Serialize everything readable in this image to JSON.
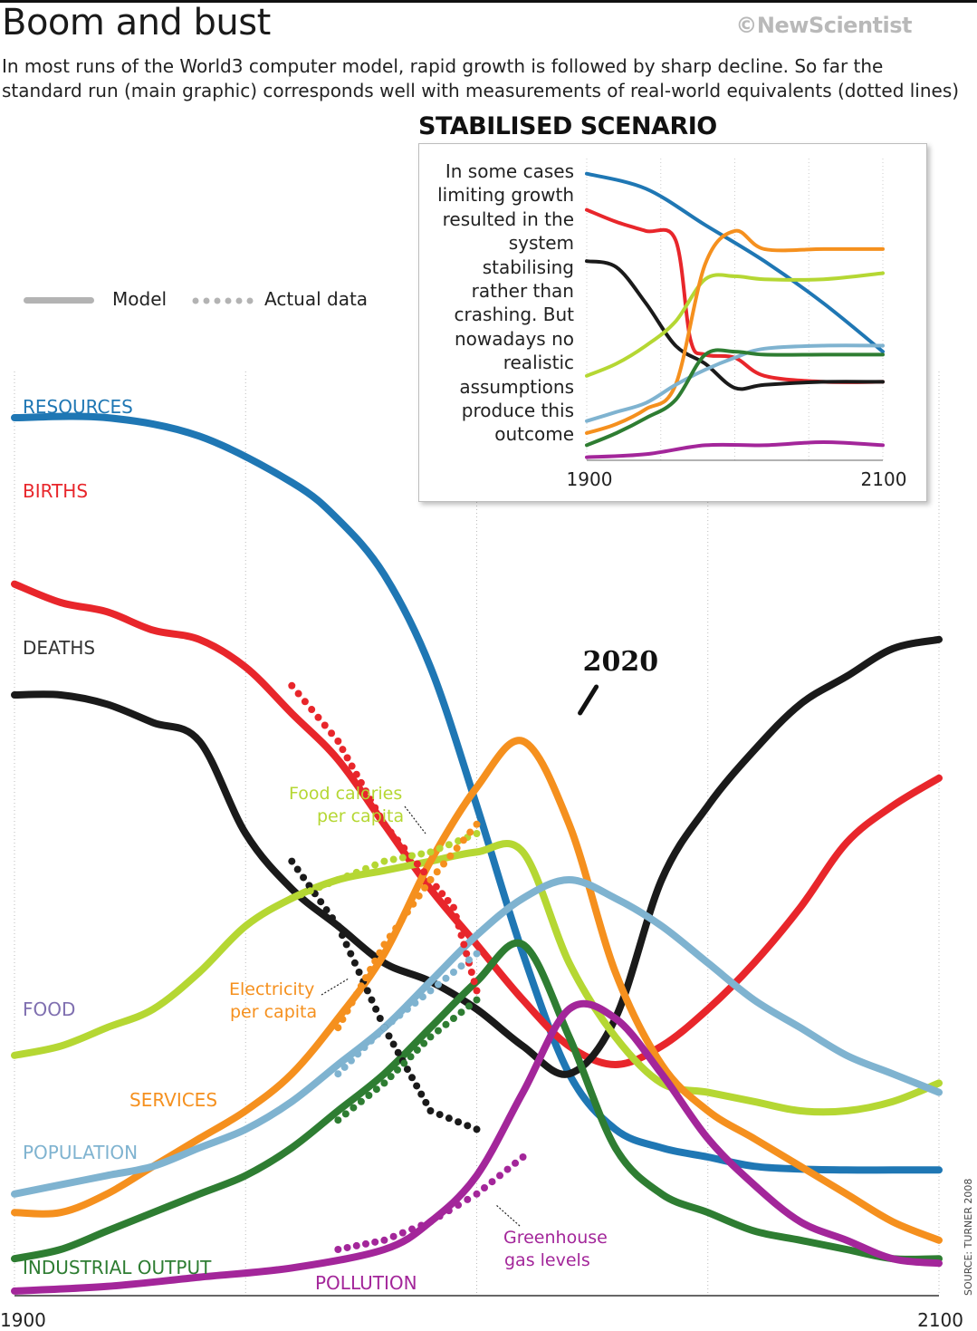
{
  "header": {
    "title": "Boom and bust",
    "brand": "©NewScientist",
    "subtitle": "In most runs of the World3 computer model, rapid growth is followed by sharp decline. So far the standard run (main graphic) corresponds well with measurements of real-world equivalents (dotted lines)"
  },
  "legend": {
    "model_label": "Model",
    "actual_label": "Actual data",
    "model_color": "#b3b3b3",
    "actual_color": "#b3b3b3"
  },
  "source_note": "SOURCE: TURNER 2008",
  "inset": {
    "title": "STABILISED SCENARIO",
    "text": "In some cases limiting growth resulted in the system stabilising rather than crashing. But nowadays no realistic assumptions produce this outcome"
  },
  "chart_data": [
    {
      "type": "line",
      "xlim": [
        1900,
        2100
      ],
      "x_tick_labels": [
        "1900",
        "2100"
      ],
      "highlight": {
        "x": 2020,
        "label": "2020"
      },
      "series": [
        {
          "name": "RESOURCES",
          "color": "#1f77b4",
          "x": [
            1900,
            1920,
            1940,
            1960,
            1970,
            1980,
            1990,
            2000,
            2010,
            2020,
            2030,
            2040,
            2050,
            2060,
            2070,
            2080,
            2090,
            2100
          ],
          "y": [
            95,
            95,
            93,
            88,
            84,
            78,
            68,
            53,
            37,
            24,
            18,
            16,
            15,
            14,
            13.7,
            13.6,
            13.6,
            13.6
          ]
        },
        {
          "name": "BIRTHS",
          "color": "#e8262b",
          "x": [
            1900,
            1910,
            1920,
            1930,
            1940,
            1950,
            1960,
            1970,
            1980,
            1990,
            2000,
            2010,
            2020,
            2030,
            2040,
            2050,
            2060,
            2070,
            2080,
            2090,
            2100
          ],
          "y": [
            77,
            75,
            74,
            72,
            71,
            68,
            63,
            58,
            51,
            44,
            38,
            32,
            27,
            25,
            27,
            31,
            36,
            42,
            49,
            53,
            56
          ]
        },
        {
          "name": "DEATHS",
          "color": "#1a1a1a",
          "x": [
            1900,
            1910,
            1920,
            1930,
            1940,
            1950,
            1960,
            1970,
            1980,
            1990,
            2000,
            2010,
            2020,
            2030,
            2040,
            2050,
            2060,
            2070,
            2080,
            2090,
            2100
          ],
          "y": [
            65,
            65,
            64,
            62,
            60,
            50,
            44,
            40,
            36,
            34,
            31,
            27,
            24,
            30,
            45,
            53,
            59,
            64,
            67,
            70,
            71
          ]
        },
        {
          "name": "FOOD",
          "color": "#b5d733",
          "x": [
            1900,
            1910,
            1920,
            1930,
            1940,
            1950,
            1960,
            1970,
            1980,
            1990,
            2000,
            2010,
            2020,
            2030,
            2040,
            2050,
            2060,
            2070,
            2080,
            2090,
            2100
          ],
          "y": [
            26,
            27,
            29,
            31,
            35,
            40,
            43,
            45,
            46,
            47,
            48,
            48,
            36,
            28,
            23,
            22,
            21,
            20,
            20,
            21,
            23
          ]
        },
        {
          "name": "SERVICES",
          "color": "#f5901e",
          "x": [
            1900,
            1910,
            1920,
            1930,
            1940,
            1950,
            1960,
            1970,
            1980,
            1990,
            2000,
            2010,
            2020,
            2030,
            2040,
            2050,
            2060,
            2070,
            2080,
            2090,
            2100
          ],
          "y": [
            9,
            9,
            11,
            14,
            17,
            20,
            24,
            30,
            37,
            47,
            55,
            60,
            51,
            35,
            25,
            20,
            17,
            14,
            11,
            8,
            6
          ]
        },
        {
          "name": "POPULATION",
          "color": "#7fb3d0",
          "x": [
            1900,
            1910,
            1920,
            1930,
            1940,
            1950,
            1960,
            1970,
            1980,
            1990,
            2000,
            2010,
            2020,
            2030,
            2040,
            2050,
            2060,
            2070,
            2080,
            2090,
            2100
          ],
          "y": [
            11,
            12,
            13,
            14,
            16,
            18,
            21,
            25,
            29,
            34,
            39,
            43,
            45,
            43,
            40,
            36,
            32,
            29,
            26,
            24,
            22
          ]
        },
        {
          "name": "INDUSTRIAL OUTPUT",
          "color": "#2e7d32",
          "x": [
            1900,
            1910,
            1920,
            1930,
            1940,
            1950,
            1960,
            1970,
            1980,
            1990,
            2000,
            2010,
            2020,
            2030,
            2040,
            2050,
            2060,
            2070,
            2080,
            2090,
            2100
          ],
          "y": [
            4,
            5,
            7,
            9,
            11,
            13,
            16,
            20,
            24,
            29,
            34,
            38,
            28,
            16,
            11,
            9,
            7,
            6,
            5,
            4,
            4
          ]
        },
        {
          "name": "POLLUTION",
          "color": "#a3269a",
          "x": [
            1900,
            1920,
            1940,
            1960,
            1980,
            1990,
            2000,
            2010,
            2020,
            2030,
            2040,
            2050,
            2060,
            2070,
            2080,
            2090,
            2100
          ],
          "y": [
            0.5,
            1,
            2,
            3,
            5,
            8,
            13,
            22,
            31,
            30,
            24,
            17,
            12,
            8,
            6,
            4,
            3.5
          ]
        }
      ],
      "actual_series": [
        {
          "name": "Actual births",
          "color": "#e8262b",
          "x": [
            1960,
            1970,
            1980,
            1990,
            1995,
            2000
          ],
          "y": [
            66,
            60,
            51,
            45,
            42,
            33
          ]
        },
        {
          "name": "Actual deaths",
          "color": "#1a1a1a",
          "x": [
            1960,
            1970,
            1980,
            1990,
            2000
          ],
          "y": [
            47,
            40,
            29,
            20,
            18
          ]
        },
        {
          "name": "Food calories per capita",
          "color": "#b5d733",
          "x": [
            1960,
            1970,
            1980,
            1990,
            2000
          ],
          "y": [
            43,
            45,
            47,
            48,
            50
          ]
        },
        {
          "name": "Electricity per capita",
          "color": "#f5901e",
          "x": [
            1970,
            1980,
            1990,
            2000
          ],
          "y": [
            29,
            38,
            45,
            51
          ]
        },
        {
          "name": "Actual population",
          "color": "#7fb3d0",
          "x": [
            1970,
            1980,
            1990,
            2000
          ],
          "y": [
            24,
            29,
            33,
            37
          ]
        },
        {
          "name": "Actual industrial output",
          "color": "#2e7d32",
          "x": [
            1970,
            1980,
            1990,
            2000
          ],
          "y": [
            19,
            23,
            28,
            32
          ]
        },
        {
          "name": "Greenhouse gas levels",
          "color": "#a3269a",
          "x": [
            1970,
            1980,
            1990,
            2000,
            2010
          ],
          "y": [
            5,
            6,
            8,
            11,
            15
          ]
        }
      ],
      "annotations": [
        {
          "text": "Food calories per capita",
          "color": "#b5d733"
        },
        {
          "text": "Electricity per capita",
          "color": "#f5901e"
        },
        {
          "text": "Greenhouse gas levels",
          "color": "#a3269a"
        }
      ]
    },
    {
      "type": "line",
      "title": "STABILISED SCENARIO",
      "xlim": [
        1900,
        2100
      ],
      "x_tick_labels": [
        "1900",
        "2100"
      ],
      "series": [
        {
          "name": "Resources",
          "color": "#1f77b4",
          "x": [
            1900,
            1940,
            1980,
            2020,
            2060,
            2100
          ],
          "y": [
            95,
            90,
            78,
            66,
            52,
            36
          ]
        },
        {
          "name": "Births",
          "color": "#e8262b",
          "x": [
            1900,
            1920,
            1940,
            1960,
            1970,
            1980,
            2000,
            2020,
            2060,
            2100
          ],
          "y": [
            83,
            79,
            76,
            73,
            40,
            35,
            34,
            28,
            26,
            26
          ]
        },
        {
          "name": "Deaths",
          "color": "#1a1a1a",
          "x": [
            1900,
            1920,
            1940,
            1960,
            1980,
            2000,
            2020,
            2060,
            2100
          ],
          "y": [
            66,
            64,
            52,
            38,
            32,
            24,
            25,
            26,
            26
          ]
        },
        {
          "name": "Food",
          "color": "#b5d733",
          "x": [
            1900,
            1920,
            1940,
            1960,
            1980,
            2000,
            2020,
            2060,
            2100
          ],
          "y": [
            28,
            32,
            38,
            46,
            60,
            61,
            60,
            60,
            62
          ]
        },
        {
          "name": "Services",
          "color": "#f5901e",
          "x": [
            1900,
            1920,
            1940,
            1960,
            1980,
            2000,
            2020,
            2060,
            2100
          ],
          "y": [
            9,
            12,
            17,
            25,
            65,
            76,
            70,
            70,
            70
          ]
        },
        {
          "name": "Population",
          "color": "#7fb3d0",
          "x": [
            1900,
            1920,
            1940,
            1960,
            1980,
            2000,
            2020,
            2060,
            2100
          ],
          "y": [
            13,
            16,
            19,
            25,
            30,
            34,
            37,
            38,
            38
          ]
        },
        {
          "name": "Industrial output",
          "color": "#2e7d32",
          "x": [
            1900,
            1920,
            1940,
            1960,
            1980,
            2000,
            2020,
            2060,
            2100
          ],
          "y": [
            5,
            9,
            14,
            20,
            35,
            36,
            35,
            35,
            35
          ]
        },
        {
          "name": "Pollution",
          "color": "#a3269a",
          "x": [
            1900,
            1940,
            1980,
            2020,
            2060,
            2100
          ],
          "y": [
            1,
            2,
            5,
            5,
            6,
            5
          ]
        }
      ]
    }
  ]
}
